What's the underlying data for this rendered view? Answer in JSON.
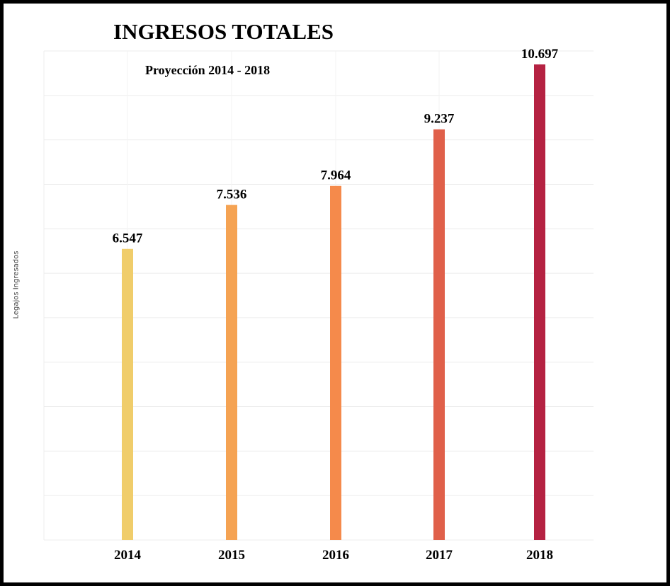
{
  "chart_data": {
    "type": "bar",
    "title": "INGRESOS TOTALES",
    "subtitle": "Proyección 2014 - 2018",
    "xlabel": "",
    "ylabel": "Legajos Ingresados",
    "categories": [
      "2014",
      "2015",
      "2016",
      "2017",
      "2018"
    ],
    "values": [
      6547,
      7536,
      7964,
      9237,
      10697
    ],
    "data_labels": [
      "6.547",
      "7.536",
      "7.964",
      "9.237",
      "10.697"
    ],
    "colors": [
      "#F0CD6B",
      "#F5A353",
      "#F58A4B",
      "#E0604A",
      "#B52242"
    ],
    "ylim": [
      0,
      11000
    ],
    "grid": true,
    "legend": "none"
  }
}
